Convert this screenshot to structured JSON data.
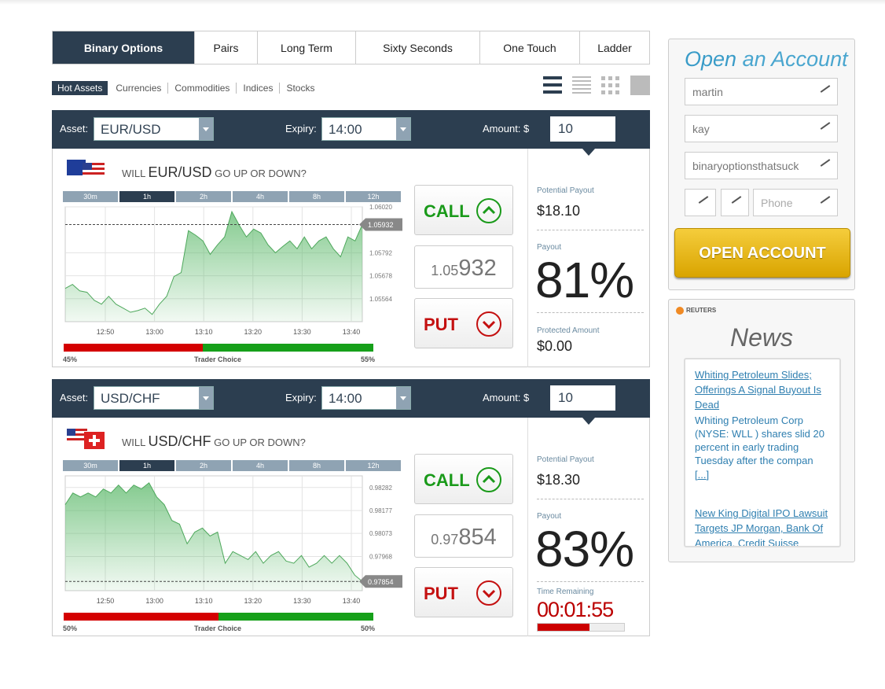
{
  "tabs": [
    "Binary Options",
    "Pairs",
    "Long Term",
    "Sixty Seconds",
    "One Touch",
    "Ladder"
  ],
  "subtabs": [
    "Hot Assets",
    "Currencies",
    "Commodities",
    "Indices",
    "Stocks"
  ],
  "panels": [
    {
      "asset_label": "Asset:",
      "asset": "EUR/USD",
      "expiry_label": "Expiry:",
      "expiry": "14:00",
      "amount_label": "Amount: $",
      "amount": "10",
      "question_pre": "WILL",
      "question_asset": "EUR/USD",
      "question_post": "GO UP OR DOWN?",
      "timeframes": [
        "30m",
        "1h",
        "2h",
        "4h",
        "8h",
        "12h"
      ],
      "chart": {
        "type": "area",
        "color": "#5cb96a",
        "values": [
          1.05615,
          1.05635,
          1.05603,
          1.05596,
          1.05556,
          1.05537,
          1.05576,
          1.05537,
          1.05517,
          1.05497,
          1.05505,
          1.05517,
          1.05486,
          1.05537,
          1.05576,
          1.05674,
          1.05694,
          1.05902,
          1.05879,
          1.05851,
          1.05784,
          1.05831,
          1.05871,
          1.05996,
          1.0593,
          1.05871,
          1.0591,
          1.0589,
          1.05831,
          1.05792,
          1.05823,
          1.05851,
          1.05812,
          1.05871,
          1.05812,
          1.05851,
          1.05871,
          1.05812,
          1.05772,
          1.05871,
          1.05851,
          1.05932
        ],
        "ylim": [
          1.0545,
          1.0602
        ],
        "yticks": [
          {
            "value": 1.0602,
            "label": "1.06020"
          },
          1.05792,
          1.05678,
          1.05564
        ],
        "xlabels": [
          "12:50",
          "13:00",
          "13:10",
          "13:20",
          "13:30",
          "13:40"
        ],
        "current": 1.05932
      },
      "trader_choice": {
        "down": {
          "value": 45,
          "label": "45%"
        },
        "label": "Trader Choice",
        "up": {
          "value": 55,
          "label": "55%"
        }
      },
      "call": "CALL",
      "put": "PUT",
      "price_prefix": "1.05",
      "price_main": "932",
      "potential_payout_label": "Potential Payout",
      "potential_payout": "$18.10",
      "payout_label": "Payout",
      "payout": "81%",
      "bottom": {
        "label": "Protected Amount",
        "value": "$0.00"
      }
    },
    {
      "asset_label": "Asset:",
      "asset": "USD/CHF",
      "expiry_label": "Expiry:",
      "expiry": "14:00",
      "amount_label": "Amount: $",
      "amount": "10",
      "question_pre": "WILL",
      "question_asset": "USD/CHF",
      "question_post": "GO UP OR DOWN?",
      "timeframes": [
        "30m",
        "1h",
        "2h",
        "4h",
        "8h",
        "12h"
      ],
      "chart": {
        "type": "area",
        "color": "#5cb96a",
        "values": [
          0.98204,
          0.98257,
          0.98239,
          0.98257,
          0.98239,
          0.98275,
          0.98257,
          0.98293,
          0.98257,
          0.98293,
          0.98275,
          0.98303,
          0.98239,
          0.98204,
          0.98132,
          0.98115,
          0.98026,
          0.98079,
          0.98097,
          0.98061,
          0.98079,
          0.97937,
          0.9799,
          0.97972,
          0.97954,
          0.9799,
          0.97937,
          0.97972,
          0.9799,
          0.97947,
          0.97937,
          0.97972,
          0.97919,
          0.97937,
          0.97972,
          0.97937,
          0.97972,
          0.97937,
          0.97883,
          0.97854
        ],
        "ylim": [
          0.97812,
          0.98335
        ],
        "yticks": [
          0.98282,
          0.98177,
          0.98073,
          0.97968
        ],
        "xlabels": [
          "12:50",
          "13:00",
          "13:10",
          "13:20",
          "13:30",
          "13:40"
        ],
        "current": 0.97854
      },
      "trader_choice": {
        "down": {
          "value": 50,
          "label": "50%"
        },
        "label": "Trader Choice",
        "up": {
          "value": 50,
          "label": "50%"
        }
      },
      "call": "CALL",
      "put": "PUT",
      "price_prefix": "0.97",
      "price_main": "854",
      "potential_payout_label": "Potential Payout",
      "potential_payout": "$18.30",
      "payout_label": "Payout",
      "payout": "83%",
      "timer": {
        "label": "Time Remaining",
        "value": "00:01:55"
      }
    }
  ],
  "account": {
    "title_open": "Open",
    "title_rest": "an Account",
    "first_name": "martin",
    "last_name": "kay",
    "email": "binaryoptionsthatsuck",
    "phone_placeholder": "Phone",
    "button": "OPEN ACCOUNT"
  },
  "news": {
    "source": "REUTERS",
    "title": "News",
    "items": [
      {
        "headline": "Whiting Petroleum Slides; Offerings A Signal Buyout Is Dead",
        "summary": "Whiting Petroleum Corp (NYSE: WLL ) shares slid 20 percent in early trading Tuesday after the compan",
        "more": "[...]"
      },
      {
        "headline": "New King Digital IPO Lawsuit Targets JP Morgan, Bank Of America, Credit Suisse"
      }
    ]
  }
}
